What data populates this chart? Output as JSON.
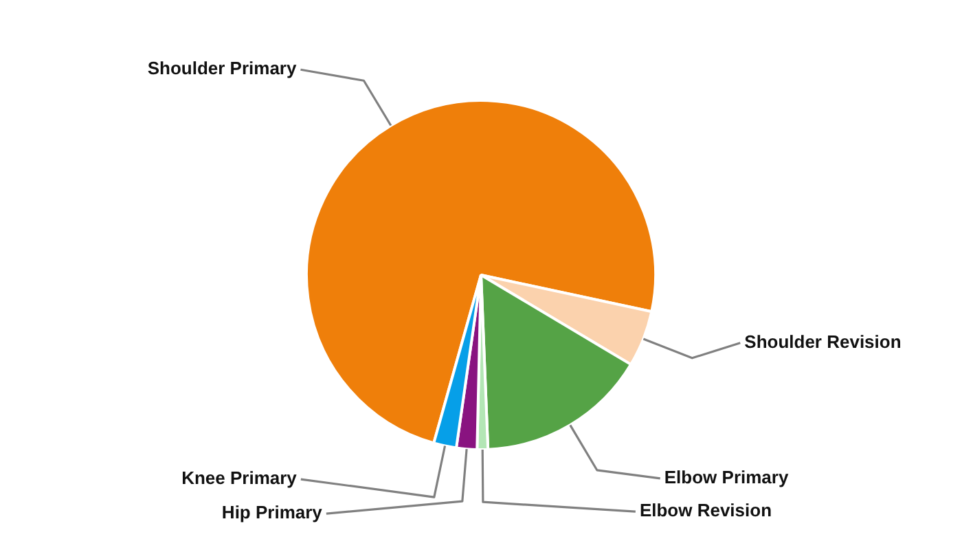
{
  "chart_data": {
    "type": "pie",
    "categories": [
      "Shoulder Primary",
      "Shoulder Revision",
      "Elbow Primary",
      "Elbow Revision",
      "Hip Primary",
      "Knee Primary"
    ],
    "values": [
      74.0,
      5.2,
      15.8,
      1.0,
      1.9,
      2.1
    ],
    "colors": [
      "#ef7f0a",
      "#fbd2ad",
      "#55a346",
      "#b3e6b5",
      "#891380",
      "#069fe8"
    ],
    "legend": false
  }
}
